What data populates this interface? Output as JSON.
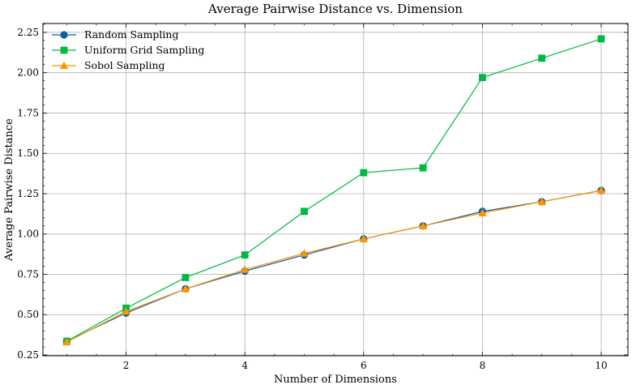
{
  "chart_data": {
    "type": "line",
    "title": "Average Pairwise Distance vs. Dimension",
    "xlabel": "Number of Dimensions",
    "ylabel": "Average Pairwise Distance",
    "xlim": [
      0.6,
      10.45
    ],
    "ylim": [
      0.245,
      2.305
    ],
    "xticks": [
      2,
      4,
      6,
      8,
      10
    ],
    "yticks": [
      0.25,
      0.5,
      0.75,
      1.0,
      1.25,
      1.5,
      1.75,
      2.0,
      2.25
    ],
    "grid": true,
    "legend_position": "top-left",
    "x": [
      1,
      2,
      3,
      4,
      5,
      6,
      7,
      8,
      9,
      10
    ],
    "series": [
      {
        "name": "Random Sampling",
        "color": "#0C5DA5",
        "marker": "circle",
        "values": [
          0.335,
          0.51,
          0.66,
          0.77,
          0.87,
          0.97,
          1.05,
          1.14,
          1.2,
          1.27
        ]
      },
      {
        "name": "Uniform Grid Sampling",
        "color": "#00B945",
        "marker": "square",
        "values": [
          0.335,
          0.54,
          0.73,
          0.87,
          1.14,
          1.38,
          1.41,
          1.97,
          2.09,
          2.21
        ]
      },
      {
        "name": "Sobol Sampling",
        "color": "#FF9500",
        "marker": "triangle",
        "values": [
          0.33,
          0.52,
          0.66,
          0.78,
          0.88,
          0.97,
          1.05,
          1.13,
          1.2,
          1.27
        ]
      }
    ]
  }
}
